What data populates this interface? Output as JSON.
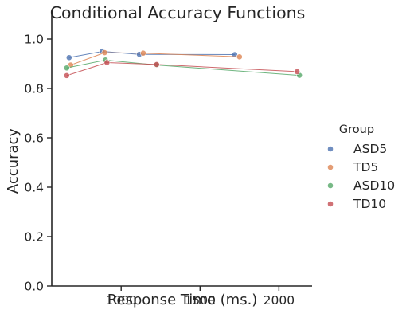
{
  "chart_data": {
    "type": "scatter",
    "title": "Conditional Accuracy Functions",
    "xlabel": "Response Time (ms.)",
    "ylabel": "Accuracy",
    "xlim": [
      560,
      2210
    ],
    "ylim": [
      0.0,
      1.1
    ],
    "x_ticks": [
      1000,
      1500,
      2000
    ],
    "y_ticks": [
      0.0,
      0.2,
      0.4,
      0.6,
      0.8,
      1.0
    ],
    "x_tick_labels": [
      "1000",
      "1500",
      "2000"
    ],
    "y_tick_labels": [
      "0.0",
      "0.2",
      "0.4",
      "0.6",
      "0.8",
      "1.0"
    ],
    "grid": false,
    "legend": {
      "title": "Group",
      "placement": "right"
    },
    "series": [
      {
        "name": "ASD5",
        "color": "#4c72b0",
        "points": [
          {
            "x": 670,
            "y": 0.925
          },
          {
            "x": 880,
            "y": 0.95
          },
          {
            "x": 1115,
            "y": 0.938
          },
          {
            "x": 1720,
            "y": 0.937
          }
        ]
      },
      {
        "name": "TD5",
        "color": "#dd8452",
        "points": [
          {
            "x": 680,
            "y": 0.895
          },
          {
            "x": 895,
            "y": 0.945
          },
          {
            "x": 1140,
            "y": 0.943
          },
          {
            "x": 1750,
            "y": 0.928
          }
        ]
      },
      {
        "name": "ASD10",
        "color": "#55a868",
        "points": [
          {
            "x": 655,
            "y": 0.883
          },
          {
            "x": 900,
            "y": 0.915
          },
          {
            "x": 1225,
            "y": 0.895
          },
          {
            "x": 2130,
            "y": 0.853
          }
        ]
      },
      {
        "name": "TD10",
        "color": "#c44e52",
        "points": [
          {
            "x": 655,
            "y": 0.852
          },
          {
            "x": 910,
            "y": 0.905
          },
          {
            "x": 1225,
            "y": 0.897
          },
          {
            "x": 2115,
            "y": 0.868
          }
        ]
      }
    ]
  }
}
